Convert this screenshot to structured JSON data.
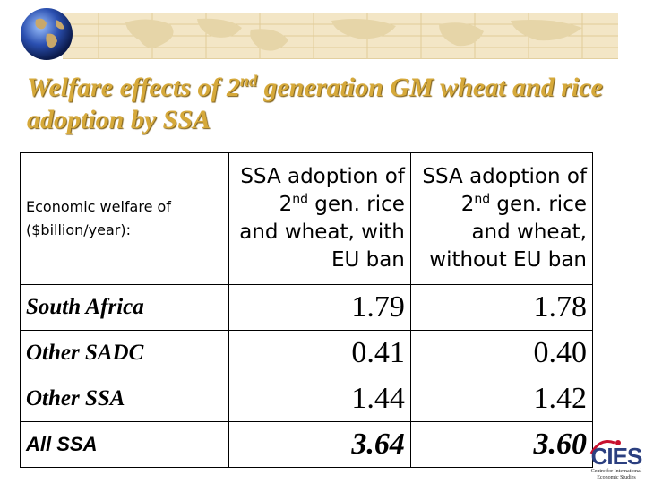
{
  "slide": {
    "title_pre": "Welfare effects of 2",
    "title_sup": "nd",
    "title_post": " generation GM wheat and rice adoption by SSA"
  },
  "table": {
    "corner_line1": "Economic welfare of",
    "corner_line2": "($billion/year):",
    "col1": {
      "l1": "SSA adoption of",
      "l2_sup": "nd",
      "l2": "2",
      "l2_rest": " gen. rice",
      "l3": "and wheat, with",
      "l4": "EU ban"
    },
    "col2": {
      "l1": "SSA adoption of",
      "l2_sup": "nd",
      "l2": "2",
      "l2_rest": " gen. rice",
      "l3": "and wheat,",
      "l4": "without EU ban"
    },
    "rows": [
      {
        "label": "South Africa",
        "with": "1.79",
        "without": "1.78"
      },
      {
        "label": "Other SADC",
        "with": "0.41",
        "without": "0.40"
      },
      {
        "label": "Other SSA",
        "with": "1.44",
        "without": "1.42"
      },
      {
        "label": "All SSA",
        "with": "3.64",
        "without": "3.60"
      }
    ]
  },
  "logo": {
    "text": "CIES",
    "subtitle_1": "Centre for International",
    "subtitle_2": "Economic Studies"
  },
  "colors": {
    "title": "#d6a93a",
    "banner": "#f3e6c6",
    "logo_blue": "#2b3f80",
    "logo_red": "#c8102e"
  }
}
